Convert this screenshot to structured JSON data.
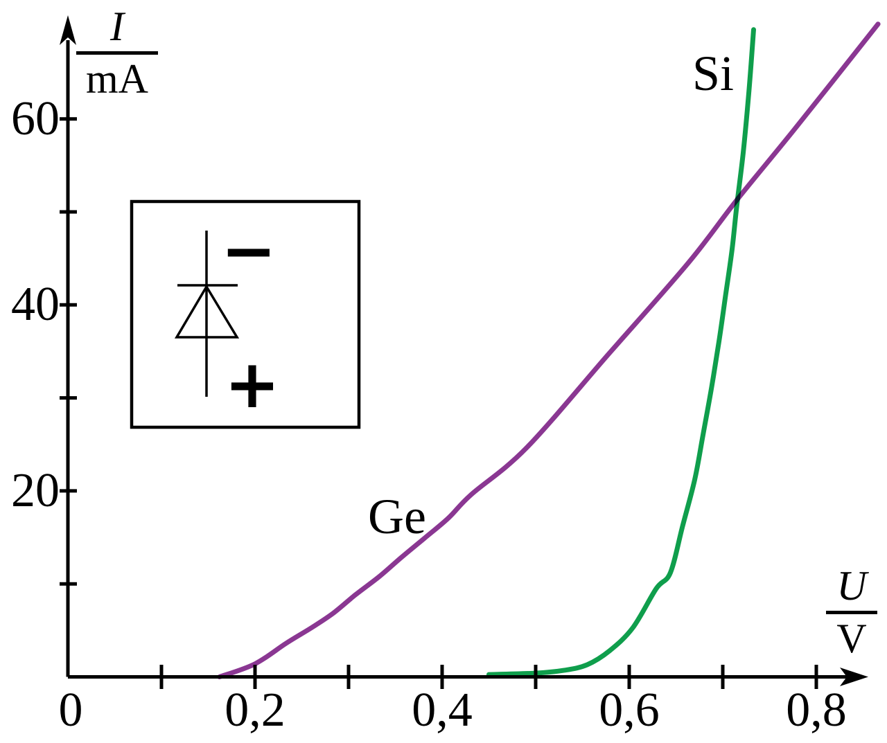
{
  "figure": {
    "background": "#ffffff",
    "axis_color": "#000000",
    "decimal_separator": ","
  },
  "axes": {
    "y_unit_fraction": {
      "numerator": "I",
      "denominator": "mA"
    },
    "x_unit_fraction": {
      "numerator": "U",
      "denominator": "V"
    },
    "origin_label": "0"
  },
  "inset_diode": {
    "symbol": "diode-forward-biased",
    "minus_label": "−",
    "plus_label": "+"
  },
  "chart_data": {
    "type": "line",
    "title": "",
    "xlabel": "U / V",
    "ylabel": "I / mA",
    "xlim": [
      0,
      0.87
    ],
    "ylim": [
      0,
      71
    ],
    "grid": false,
    "legend_position": "inline-labels",
    "x_ticks": [
      0.1,
      0.2,
      0.3,
      0.4,
      0.5,
      0.6,
      0.7,
      0.8
    ],
    "y_ticks": [
      10,
      20,
      30,
      40,
      50,
      60
    ],
    "x_labeled_ticks": [
      {
        "value": 0.2,
        "label": "0,2"
      },
      {
        "value": 0.4,
        "label": "0,4"
      },
      {
        "value": 0.6,
        "label": "0,6"
      },
      {
        "value": 0.8,
        "label": "0,8"
      }
    ],
    "y_labeled_ticks": [
      {
        "value": 20,
        "label": "20"
      },
      {
        "value": 40,
        "label": "40"
      },
      {
        "value": 60,
        "label": "60"
      }
    ],
    "series": [
      {
        "name": "Ge",
        "color": "#8a3792",
        "points": [
          [
            0.162,
            0
          ],
          [
            0.2,
            1.4
          ],
          [
            0.233,
            3.6
          ],
          [
            0.259,
            5.2
          ],
          [
            0.283,
            6.8
          ],
          [
            0.307,
            8.8
          ],
          [
            0.333,
            10.8
          ],
          [
            0.357,
            12.9
          ],
          [
            0.381,
            14.9
          ],
          [
            0.407,
            17.1
          ],
          [
            0.431,
            19.6
          ],
          [
            0.49,
            24.6
          ],
          [
            0.577,
            34.6
          ],
          [
            0.663,
            44.5
          ],
          [
            0.716,
            51.4
          ],
          [
            0.78,
            59.3
          ],
          [
            0.866,
            70.2
          ]
        ]
      },
      {
        "name": "Si",
        "color": "#0f9e4c",
        "points": [
          [
            0.45,
            0.25
          ],
          [
            0.5,
            0.4
          ],
          [
            0.53,
            0.7
          ],
          [
            0.555,
            1.3
          ],
          [
            0.579,
            2.8
          ],
          [
            0.604,
            5.3
          ],
          [
            0.629,
            9.5
          ],
          [
            0.644,
            11.2
          ],
          [
            0.657,
            16.2
          ],
          [
            0.67,
            21.2
          ],
          [
            0.679,
            26.1
          ],
          [
            0.688,
            31.1
          ],
          [
            0.696,
            36.1
          ],
          [
            0.703,
            41.0
          ],
          [
            0.71,
            46.0
          ],
          [
            0.715,
            50.7
          ],
          [
            0.722,
            56.5
          ],
          [
            0.728,
            63.0
          ],
          [
            0.733,
            69.6
          ]
        ]
      }
    ]
  }
}
